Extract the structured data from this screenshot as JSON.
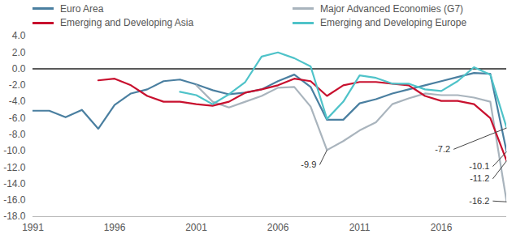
{
  "chart_data": {
    "type": "line",
    "legend": "top",
    "grid": false,
    "x": [
      1991,
      1992,
      1993,
      1994,
      1995,
      1996,
      1997,
      1998,
      1999,
      2000,
      2001,
      2002,
      2003,
      2004,
      2005,
      2006,
      2007,
      2008,
      2009,
      2010,
      2011,
      2012,
      2013,
      2014,
      2015,
      2016,
      2017,
      2018,
      2019,
      2020
    ],
    "series": [
      {
        "name": "Euro Area",
        "color": "#4a7fa0",
        "values": [
          -5.1,
          -5.1,
          -5.9,
          -5.0,
          -7.3,
          -4.4,
          -3.0,
          -2.5,
          -1.5,
          -1.3,
          -1.9,
          -2.6,
          -3.1,
          -2.9,
          -2.5,
          -1.5,
          -0.7,
          -2.2,
          -6.2,
          -6.2,
          -4.2,
          -3.7,
          -3.0,
          -2.5,
          -2.0,
          -1.5,
          -1.0,
          -0.5,
          -0.6,
          -10.1
        ]
      },
      {
        "name": "Major Advanced Economies (G7)",
        "color": "#a9b4bd",
        "values": [
          null,
          null,
          null,
          null,
          null,
          null,
          null,
          null,
          null,
          null,
          -2.0,
          -4.0,
          -4.7,
          -4.0,
          -3.3,
          -2.3,
          -2.2,
          -4.6,
          -9.9,
          -8.8,
          -7.5,
          -6.5,
          -4.3,
          -3.6,
          -3.0,
          -3.2,
          -3.2,
          -3.5,
          -4.0,
          -16.2
        ]
      },
      {
        "name": "Emerging and Developing Asia",
        "color": "#c8102e",
        "values": [
          null,
          null,
          null,
          null,
          -1.4,
          -1.2,
          -2.0,
          -3.3,
          -4.0,
          -4.0,
          -4.3,
          -4.5,
          -4.0,
          -2.9,
          -2.5,
          -2.0,
          -1.2,
          -1.5,
          -3.3,
          -2.0,
          -1.6,
          -1.6,
          -1.8,
          -2.0,
          -3.3,
          -3.9,
          -3.9,
          -4.3,
          -6.0,
          -11.2
        ]
      },
      {
        "name": "Emerging and Developing Europe",
        "color": "#4fc3c9",
        "values": [
          null,
          null,
          null,
          null,
          null,
          null,
          null,
          null,
          null,
          -2.8,
          -3.2,
          -4.3,
          -3.1,
          -1.6,
          1.5,
          2.0,
          1.3,
          0.3,
          -6.1,
          -4.0,
          -0.8,
          -1.1,
          -1.8,
          -1.8,
          -2.5,
          -2.7,
          -1.5,
          0.2,
          -0.7,
          -7.2
        ]
      }
    ],
    "xlim": [
      1991,
      2020
    ],
    "xticks": [
      1991,
      1996,
      2001,
      2006,
      2011,
      2016
    ],
    "ylim": [
      -18,
      4
    ],
    "yticks": [
      {
        "value": -18,
        "label": "-18.0"
      },
      {
        "value": -16,
        "label": "-16.0"
      },
      {
        "value": -14,
        "label": "-14.0"
      },
      {
        "value": -12,
        "label": "-12.0"
      },
      {
        "value": -10,
        "label": "-10.0"
      },
      {
        "value": -8,
        "label": "-8.0"
      },
      {
        "value": -6,
        "label": "-6.0"
      },
      {
        "value": -4,
        "label": "-4.0"
      },
      {
        "value": -2,
        "label": "-2.0"
      },
      {
        "value": 0,
        "label": "0.0"
      },
      {
        "value": 2,
        "label": "2.0"
      },
      {
        "value": 4,
        "label": "4.0"
      }
    ],
    "annotations": [
      {
        "text": "-9.9",
        "x": 2009,
        "y": -9.9
      },
      {
        "text": "-7.2",
        "x": 2020,
        "y": -7.2
      },
      {
        "text": "-10.1",
        "x": 2020,
        "y": -10.1
      },
      {
        "text": "-11.2",
        "x": 2020,
        "y": -11.2
      },
      {
        "text": "-16.2",
        "x": 2020,
        "y": -16.2
      }
    ]
  }
}
